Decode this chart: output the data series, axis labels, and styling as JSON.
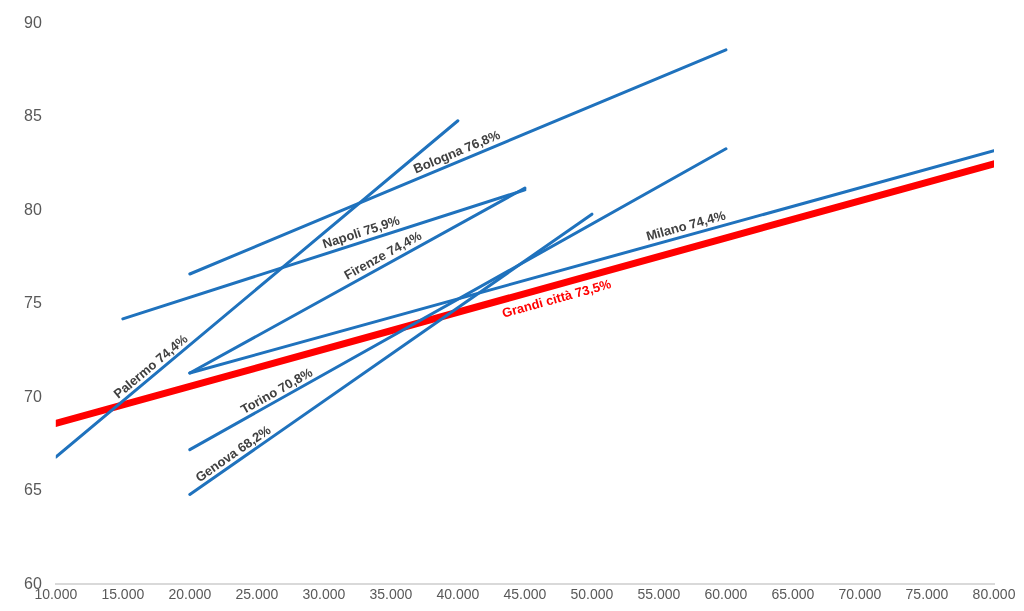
{
  "chart_data": {
    "type": "line",
    "xlim": [
      10000,
      80000
    ],
    "ylim": [
      60,
      90
    ],
    "xticks": [
      {
        "value": 10000,
        "label": "10.000"
      },
      {
        "value": 15000,
        "label": "15.000"
      },
      {
        "value": 20000,
        "label": "20.000"
      },
      {
        "value": 25000,
        "label": "25.000"
      },
      {
        "value": 30000,
        "label": "30.000"
      },
      {
        "value": 35000,
        "label": "35.000"
      },
      {
        "value": 40000,
        "label": "40.000"
      },
      {
        "value": 45000,
        "label": "45.000"
      },
      {
        "value": 50000,
        "label": "50.000"
      },
      {
        "value": 55000,
        "label": "55.000"
      },
      {
        "value": 60000,
        "label": "60.000"
      },
      {
        "value": 65000,
        "label": "65.000"
      },
      {
        "value": 70000,
        "label": "70.000"
      },
      {
        "value": 75000,
        "label": "75.000"
      },
      {
        "value": 80000,
        "label": "80.000"
      }
    ],
    "yticks": [
      60,
      65,
      70,
      75,
      80,
      85,
      90
    ],
    "grid": false,
    "legend": false,
    "marker": "none",
    "line_style": "solid",
    "series": [
      {
        "name": "Bologna 76,8%",
        "color": "#1f72bd",
        "x": [
          20000,
          60000
        ],
        "values": [
          76.6,
          88.6
        ]
      },
      {
        "name": "Napoli 75,9%",
        "color": "#1f72bd",
        "x": [
          15000,
          45000
        ],
        "values": [
          74.2,
          81.1
        ]
      },
      {
        "name": "Palermo 74,4%",
        "color": "#1f72bd",
        "x": [
          10000,
          40000
        ],
        "values": [
          66.8,
          84.8
        ]
      },
      {
        "name": "Firenze 74,4%",
        "color": "#1f72bd",
        "x": [
          20000,
          45000
        ],
        "values": [
          71.3,
          81.2
        ]
      },
      {
        "name": "Torino 70,8%",
        "color": "#1f72bd",
        "x": [
          20000,
          60000
        ],
        "values": [
          67.2,
          83.3
        ]
      },
      {
        "name": "Genova 68,2%",
        "color": "#1f72bd",
        "x": [
          20000,
          50000
        ],
        "values": [
          64.8,
          79.8
        ]
      },
      {
        "name": "Milano 74,4%",
        "color": "#1f72bd",
        "x": [
          20000,
          80000
        ],
        "values": [
          71.3,
          83.2
        ]
      },
      {
        "name": "Grandi città 73,5%",
        "color": "#ff0000",
        "x": [
          10000,
          80000
        ],
        "values": [
          68.6,
          82.5
        ]
      }
    ]
  }
}
